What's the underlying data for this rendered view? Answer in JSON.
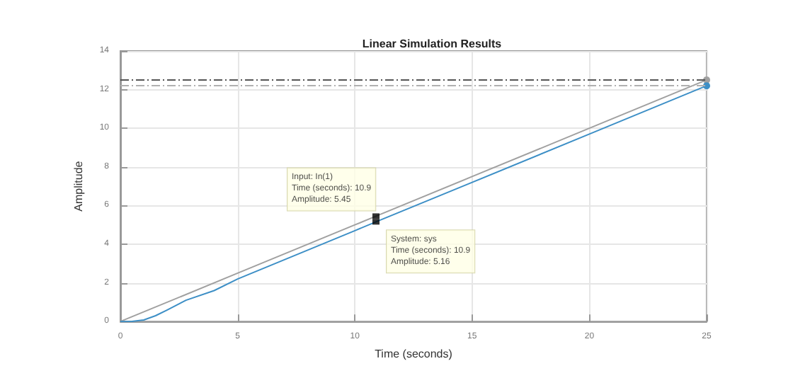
{
  "chart_data": {
    "type": "line",
    "title": "Linear Simulation Results",
    "xlabel": "Time (seconds)",
    "ylabel": "Amplitude",
    "xlim": [
      0,
      25
    ],
    "xticks": [
      0,
      5,
      10,
      15,
      20,
      25
    ],
    "ylim": [
      0,
      14
    ],
    "yticks": [
      0,
      2,
      4,
      6,
      8,
      10,
      12,
      14
    ],
    "grid": true,
    "series": [
      {
        "color": "#a0a0a0",
        "x": [
          0,
          5,
          10,
          10.9,
          15,
          20,
          25
        ],
        "values": [
          0,
          2.5,
          5,
          5.45,
          7.5,
          10,
          12.5
        ]
      },
      {
        "color": "#3d8fc6",
        "x": [
          0,
          0.5,
          1,
          1.5,
          2,
          2.8,
          4,
          5,
          10,
          10.9,
          15,
          20,
          25
        ],
        "values": [
          0,
          0.01,
          0.08,
          0.3,
          0.6,
          1.1,
          1.6,
          2.2,
          4.7,
          5.16,
          7.2,
          9.7,
          12.2
        ]
      }
    ],
    "ref_lines": [
      {
        "axis": "y",
        "value": 12.5,
        "color": "#555555",
        "line_style": "dashed"
      },
      {
        "axis": "y",
        "value": 12.2,
        "color": "#b0b0b0",
        "line_style": "dashed"
      }
    ],
    "annotations": [
      {
        "text": "Input: In(1)\nTime (seconds): 10.9\nAmplitude: 5.45",
        "x": 10.9,
        "y": 5.45
      },
      {
        "text": "System: sys\nTime (seconds): 10.9\nAmplitude: 5.16",
        "x": 10.9,
        "y": 5.16
      }
    ]
  }
}
